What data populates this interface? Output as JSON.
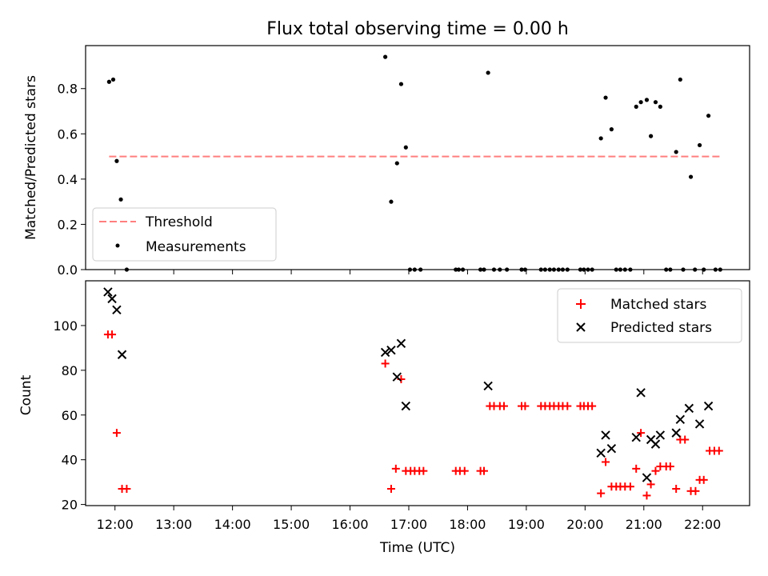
{
  "chart_data": [
    {
      "type": "scatter",
      "title": "Flux total observing time = 0.00 h",
      "xlabel": "",
      "ylabel": "Matched/Predicted stars",
      "xlim": [
        11.5,
        22.8
      ],
      "ylim": [
        0,
        0.99
      ],
      "yticks": [
        0.0,
        0.2,
        0.4,
        0.6,
        0.8
      ],
      "ytick_labels": [
        "0.0",
        "0.2",
        "0.4",
        "0.6",
        "0.8"
      ],
      "legend": {
        "placement": "lower-left",
        "entries": [
          "Threshold",
          "Measurements"
        ]
      },
      "threshold": {
        "name": "Threshold",
        "y": 0.5,
        "x": [
          11.9,
          22.3
        ],
        "color": "#ff7f7f"
      },
      "series": [
        {
          "name": "Measurements",
          "color": "#000000",
          "x": [
            11.9,
            11.97,
            12.03,
            12.1,
            12.2,
            16.6,
            16.7,
            16.8,
            16.87,
            16.95,
            17.02,
            17.1,
            17.2,
            17.8,
            17.85,
            17.92,
            18.22,
            18.28,
            18.35,
            18.45,
            18.55,
            18.67,
            18.92,
            18.98,
            19.25,
            19.32,
            19.4,
            19.47,
            19.55,
            19.62,
            19.7,
            19.92,
            19.98,
            20.05,
            20.12,
            20.27,
            20.35,
            20.45,
            20.53,
            20.6,
            20.68,
            20.77,
            20.87,
            20.95,
            21.05,
            21.12,
            21.2,
            21.28,
            21.38,
            21.45,
            21.55,
            21.62,
            21.67,
            21.8,
            21.87,
            21.95,
            22.02,
            22.1,
            22.22,
            22.3
          ],
          "y": [
            0.83,
            0.84,
            0.48,
            0.31,
            0.0,
            0.94,
            0.3,
            0.47,
            0.82,
            0.54,
            0.0,
            0.0,
            0.0,
            0.0,
            0.0,
            0.0,
            0.0,
            0.0,
            0.87,
            0.0,
            0.0,
            0.0,
            0.0,
            0.0,
            0.0,
            0.0,
            0.0,
            0.0,
            0.0,
            0.0,
            0.0,
            0.0,
            0.0,
            0.0,
            0.0,
            0.58,
            0.76,
            0.62,
            0.0,
            0.0,
            0.0,
            0.0,
            0.72,
            0.74,
            0.75,
            0.59,
            0.74,
            0.72,
            0.0,
            0.0,
            0.52,
            0.84,
            0.0,
            0.41,
            0.0,
            0.55,
            0.0,
            0.68,
            0.0,
            0.0
          ]
        }
      ]
    },
    {
      "type": "scatter",
      "title": "",
      "xlabel": "Time (UTC)",
      "ylabel": "Count",
      "xlim": [
        11.5,
        22.8
      ],
      "ylim": [
        19.5,
        120
      ],
      "yticks": [
        20,
        40,
        60,
        80,
        100
      ],
      "ytick_labels": [
        "20",
        "40",
        "60",
        "80",
        "100"
      ],
      "xticks": [
        12,
        13,
        14,
        15,
        16,
        17,
        18,
        19,
        20,
        21,
        22
      ],
      "xtick_labels": [
        "12:00",
        "13:00",
        "14:00",
        "15:00",
        "16:00",
        "17:00",
        "18:00",
        "19:00",
        "20:00",
        "21:00",
        "22:00"
      ],
      "legend": {
        "placement": "top-right",
        "entries": [
          "Matched stars",
          "Predicted stars"
        ]
      },
      "series": [
        {
          "name": "Matched stars",
          "marker": "plus",
          "color": "#ff0000",
          "x": [
            11.88,
            11.95,
            12.03,
            12.12,
            12.2,
            16.6,
            16.7,
            16.78,
            16.87,
            16.95,
            17.03,
            17.1,
            17.18,
            17.25,
            17.8,
            17.87,
            17.95,
            18.22,
            18.28,
            18.38,
            18.45,
            18.55,
            18.62,
            18.92,
            18.98,
            19.25,
            19.32,
            19.4,
            19.47,
            19.55,
            19.62,
            19.7,
            19.92,
            19.98,
            20.05,
            20.12,
            20.27,
            20.35,
            20.45,
            20.53,
            20.6,
            20.68,
            20.77,
            20.87,
            20.95,
            21.05,
            21.12,
            21.2,
            21.28,
            21.38,
            21.45,
            21.55,
            21.62,
            21.7,
            21.8,
            21.88,
            21.95,
            22.02,
            22.12,
            22.2,
            22.28
          ],
          "y": [
            96,
            96,
            52,
            27,
            27,
            83,
            27,
            36,
            76,
            35,
            35,
            35,
            35,
            35,
            35,
            35,
            35,
            35,
            35,
            64,
            64,
            64,
            64,
            64,
            64,
            64,
            64,
            64,
            64,
            64,
            64,
            64,
            64,
            64,
            64,
            64,
            25,
            39,
            28,
            28,
            28,
            28,
            28,
            36,
            52,
            24,
            29,
            35,
            37,
            37,
            37,
            27,
            49,
            49,
            26,
            26,
            31,
            31,
            44,
            44,
            44
          ]
        },
        {
          "name": "Predicted stars",
          "marker": "x",
          "color": "#000000",
          "x": [
            11.88,
            11.95,
            12.03,
            12.12,
            16.6,
            16.7,
            16.8,
            16.87,
            16.95,
            18.35,
            20.27,
            20.35,
            20.45,
            20.87,
            20.95,
            21.05,
            21.12,
            21.2,
            21.28,
            21.55,
            21.62,
            21.77,
            21.95,
            22.1
          ],
          "y": [
            115,
            112,
            107,
            87,
            88,
            89,
            77,
            92,
            64,
            73,
            43,
            51,
            45,
            50,
            70,
            32,
            49,
            47,
            51,
            52,
            58,
            63,
            56,
            64
          ]
        }
      ]
    }
  ]
}
